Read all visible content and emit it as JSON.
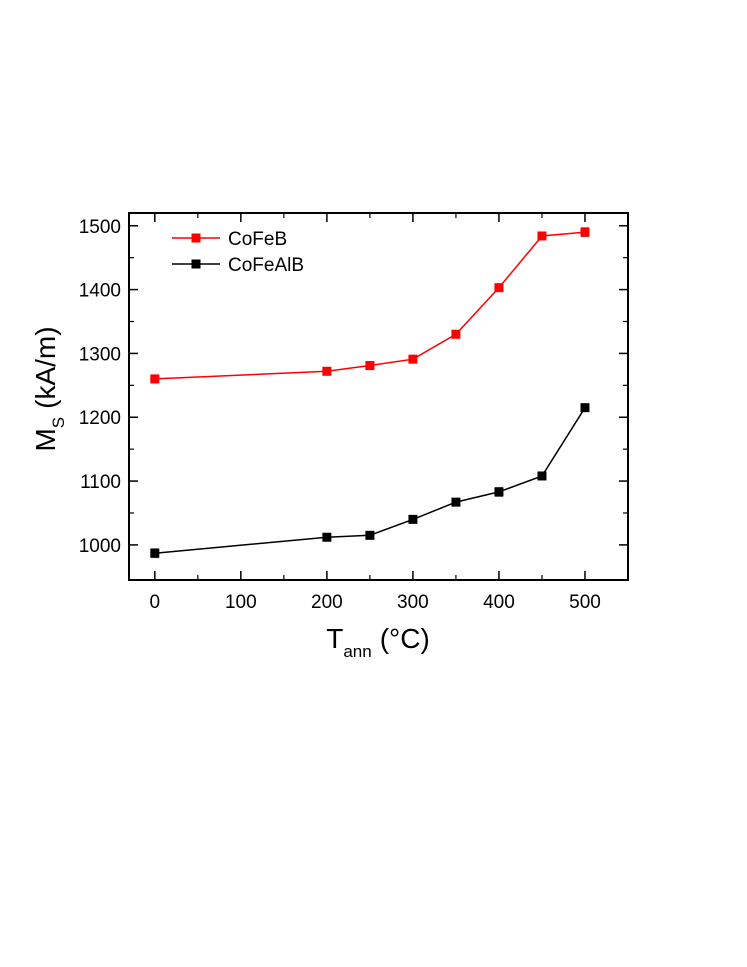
{
  "chart_data": {
    "type": "line",
    "x_unit_label": "(°C)",
    "y_unit_label": "(kA/m)",
    "xlabel_main": "T",
    "xlabel_sub": "ann",
    "ylabel_main": "M",
    "ylabel_sub": "S",
    "xlim": [
      -30,
      550
    ],
    "ylim": [
      945,
      1520
    ],
    "xticks": [
      0,
      100,
      200,
      300,
      400,
      500
    ],
    "yticks": [
      1000,
      1100,
      1200,
      1300,
      1400,
      1500
    ],
    "legend_position": "top-left",
    "grid": false,
    "series": [
      {
        "name": "CoFeB",
        "color": "#ff0000",
        "x": [
          0,
          200,
          250,
          300,
          350,
          400,
          450,
          500
        ],
        "y": [
          1260,
          1272,
          1281,
          1291,
          1330,
          1403,
          1484,
          1490
        ],
        "err": [
          0,
          0,
          0,
          0,
          0,
          0,
          0,
          7
        ]
      },
      {
        "name": "CoFeAlB",
        "color": "#000000",
        "x": [
          0,
          200,
          250,
          300,
          350,
          400,
          450,
          500
        ],
        "y": [
          987,
          1012,
          1015,
          1040,
          1067,
          1083,
          1108,
          1215
        ],
        "err": [
          7,
          0,
          0,
          0,
          0,
          7,
          0,
          0
        ]
      }
    ]
  }
}
